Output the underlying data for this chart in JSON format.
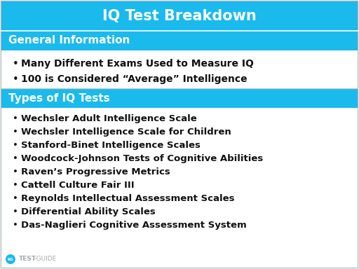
{
  "title": "IQ Test Breakdown",
  "title_bg": "#1ABAED",
  "title_color": "#FFFFFF",
  "section1_header": "General Information",
  "section1_bg": "#1ABAED",
  "section1_color": "#FFFFFF",
  "section1_items": [
    "Many Different Exams Used to Measure IQ",
    "100 is Considered “Average” Intelligence"
  ],
  "section2_header": "Types of IQ Tests",
  "section2_bg": "#1ABAED",
  "section2_color": "#FFFFFF",
  "section2_items": [
    "Wechsler Adult Intelligence Scale",
    "Wechsler Intelligence Scale for Children",
    "Stanford-Binet Intelligence Scales",
    "Woodcock-Johnson Tests of Cognitive Abilities",
    "Raven’s Progressive Metrics",
    "Cattell Culture Fair III",
    "Reynolds Intellectual Assessment Scales",
    "Differential Ability Scales",
    "Das-Naglieri Cognitive Assessment System"
  ],
  "content_bg": "#FFFFFF",
  "outer_bg": "#E8EEF4",
  "content_text_color": "#111111",
  "border_color": "#CCCCCC",
  "watermark_text_bold": "TEST",
  "watermark_text_light": "-GUIDE",
  "watermark_color": "#AAAAAA",
  "outer_border_color": "#AAAAAA",
  "title_fontsize": 15,
  "header_fontsize": 11,
  "item_fontsize": 9.5
}
